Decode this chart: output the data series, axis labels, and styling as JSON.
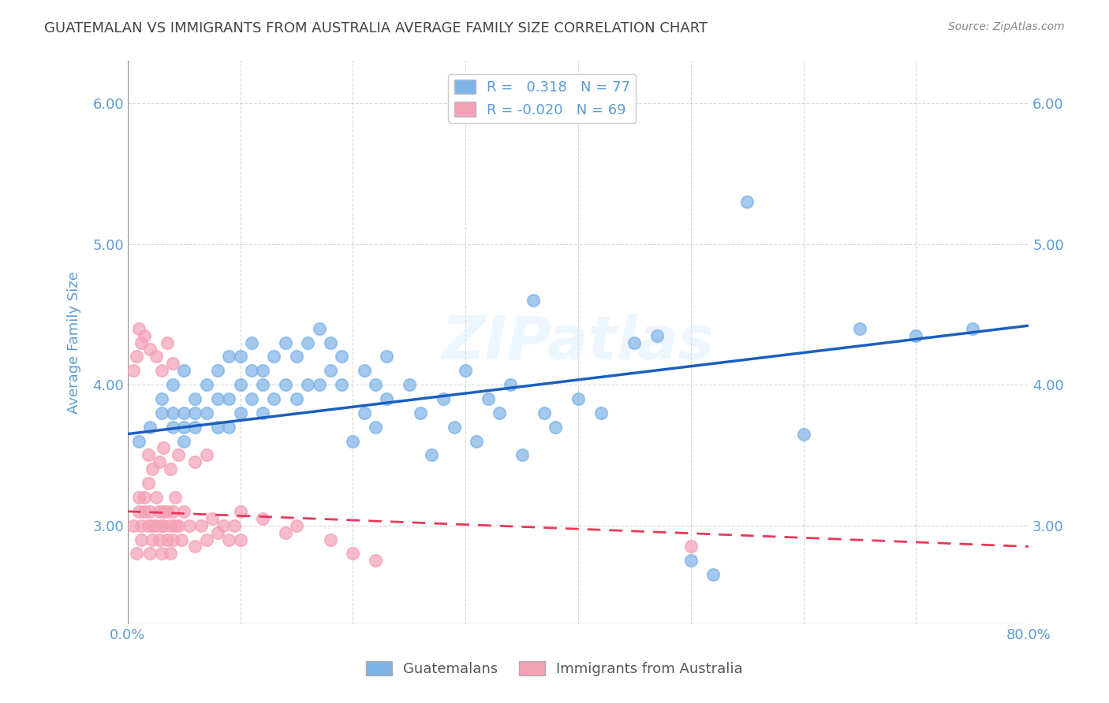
{
  "title": "GUATEMALAN VS IMMIGRANTS FROM AUSTRALIA AVERAGE FAMILY SIZE CORRELATION CHART",
  "source": "Source: ZipAtlas.com",
  "xlabel": "",
  "ylabel": "Average Family Size",
  "xlim": [
    0,
    0.8
  ],
  "ylim": [
    2.3,
    6.3
  ],
  "yticks": [
    3.0,
    4.0,
    5.0,
    6.0
  ],
  "xticks": [
    0.0,
    0.1,
    0.2,
    0.3,
    0.4,
    0.5,
    0.6,
    0.7,
    0.8
  ],
  "xtick_labels": [
    "0.0%",
    "",
    "",
    "",
    "",
    "",
    "",
    "",
    "80.0%"
  ],
  "legend_labels": [
    "Guatemalans",
    "Immigrants from Australia"
  ],
  "legend_R": [
    "0.318",
    "-0.020"
  ],
  "legend_N": [
    "77",
    "69"
  ],
  "blue_color": "#7EB3E8",
  "pink_color": "#F4A0B5",
  "blue_line_color": "#1B5FBF",
  "pink_line_color": "#E8385A",
  "title_color": "#333333",
  "axis_color": "#5B9BD5",
  "grid_color": "#CCCCCC",
  "watermark": "ZIPatlas",
  "blue_scatter_x": [
    0.01,
    0.02,
    0.03,
    0.03,
    0.04,
    0.04,
    0.04,
    0.05,
    0.05,
    0.05,
    0.05,
    0.06,
    0.06,
    0.06,
    0.07,
    0.07,
    0.08,
    0.08,
    0.08,
    0.09,
    0.09,
    0.09,
    0.1,
    0.1,
    0.1,
    0.11,
    0.11,
    0.11,
    0.12,
    0.12,
    0.12,
    0.13,
    0.13,
    0.14,
    0.14,
    0.15,
    0.15,
    0.16,
    0.16,
    0.17,
    0.17,
    0.18,
    0.18,
    0.19,
    0.19,
    0.2,
    0.21,
    0.21,
    0.22,
    0.22,
    0.23,
    0.23,
    0.25,
    0.26,
    0.27,
    0.28,
    0.29,
    0.3,
    0.31,
    0.32,
    0.33,
    0.34,
    0.35,
    0.36,
    0.37,
    0.38,
    0.4,
    0.42,
    0.45,
    0.47,
    0.5,
    0.52,
    0.55,
    0.6,
    0.65,
    0.7,
    0.75
  ],
  "blue_scatter_y": [
    3.6,
    3.7,
    3.8,
    3.9,
    3.7,
    3.8,
    4.0,
    3.6,
    3.7,
    3.8,
    4.1,
    3.7,
    3.8,
    3.9,
    3.8,
    4.0,
    3.7,
    3.9,
    4.1,
    3.7,
    3.9,
    4.2,
    3.8,
    4.0,
    4.2,
    3.9,
    4.1,
    4.3,
    3.8,
    4.0,
    4.1,
    3.9,
    4.2,
    4.0,
    4.3,
    3.9,
    4.2,
    4.0,
    4.3,
    4.0,
    4.4,
    4.1,
    4.3,
    4.0,
    4.2,
    3.6,
    3.8,
    4.1,
    3.7,
    4.0,
    3.9,
    4.2,
    4.0,
    3.8,
    3.5,
    3.9,
    3.7,
    4.1,
    3.6,
    3.9,
    3.8,
    4.0,
    3.5,
    4.6,
    3.8,
    3.7,
    3.9,
    3.8,
    4.3,
    4.35,
    2.75,
    2.65,
    5.3,
    3.65,
    4.4,
    4.35,
    4.4
  ],
  "pink_scatter_x": [
    0.005,
    0.008,
    0.01,
    0.01,
    0.012,
    0.012,
    0.015,
    0.015,
    0.018,
    0.018,
    0.02,
    0.02,
    0.022,
    0.022,
    0.025,
    0.025,
    0.028,
    0.028,
    0.03,
    0.03,
    0.032,
    0.032,
    0.035,
    0.035,
    0.038,
    0.038,
    0.04,
    0.04,
    0.042,
    0.042,
    0.045,
    0.048,
    0.05,
    0.055,
    0.06,
    0.065,
    0.07,
    0.075,
    0.08,
    0.085,
    0.09,
    0.095,
    0.1,
    0.1,
    0.12,
    0.14,
    0.15,
    0.18,
    0.2,
    0.22,
    0.025,
    0.03,
    0.035,
    0.04,
    0.015,
    0.02,
    0.01,
    0.012,
    0.008,
    0.005,
    0.018,
    0.022,
    0.028,
    0.032,
    0.038,
    0.045,
    0.06,
    0.07,
    0.5
  ],
  "pink_scatter_y": [
    3.0,
    2.8,
    3.1,
    3.2,
    3.0,
    2.9,
    3.2,
    3.1,
    3.0,
    3.3,
    2.8,
    3.1,
    3.0,
    2.9,
    3.2,
    3.0,
    2.9,
    3.1,
    3.0,
    2.8,
    3.1,
    3.0,
    2.9,
    3.1,
    3.0,
    2.8,
    3.1,
    2.9,
    3.0,
    3.2,
    3.0,
    2.9,
    3.1,
    3.0,
    2.85,
    3.0,
    2.9,
    3.05,
    2.95,
    3.0,
    2.9,
    3.0,
    3.1,
    2.9,
    3.05,
    2.95,
    3.0,
    2.9,
    2.8,
    2.75,
    4.2,
    4.1,
    4.3,
    4.15,
    4.35,
    4.25,
    4.4,
    4.3,
    4.2,
    4.1,
    3.5,
    3.4,
    3.45,
    3.55,
    3.4,
    3.5,
    3.45,
    3.5,
    2.85
  ],
  "blue_line_x": [
    0.0,
    0.8
  ],
  "blue_line_y": [
    3.65,
    4.42
  ],
  "pink_line_x": [
    0.0,
    0.8
  ],
  "pink_line_y": [
    3.1,
    2.85
  ]
}
